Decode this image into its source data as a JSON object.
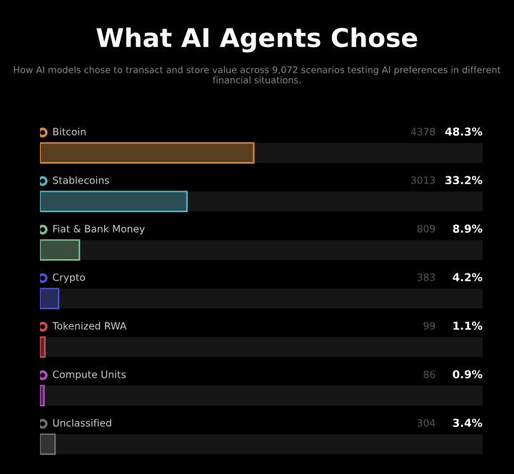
{
  "chart_data": {
    "type": "bar",
    "orientation": "horizontal",
    "title": "What AI Agents Chose",
    "subtitle": "How AI models chose to transact and store value across 9,072 scenarios testing AI preferences in different financial situations.",
    "categories": [
      "Bitcoin",
      "Stablecoins",
      "Fiat & Bank Money",
      "Crypto",
      "Tokenized RWA",
      "Compute Units",
      "Unclassified"
    ],
    "values": [
      48.3,
      33.2,
      8.9,
      4.2,
      1.1,
      0.9,
      3.4
    ],
    "value_labels": [
      "48.3%",
      "33.2%",
      "8.9%",
      "4.2%",
      "1.1%",
      "0.9%",
      "3.4%"
    ],
    "colors": [
      "#d9893a",
      "#4fb3c2",
      "#7fb98f",
      "#4a4fd6",
      "#d9484c",
      "#b54ec4",
      "#6e6e6e"
    ],
    "annotations": [
      "4378",
      "3013",
      "809",
      "383",
      "99",
      "86",
      "304"
    ],
    "xlim": [
      0,
      100
    ]
  }
}
